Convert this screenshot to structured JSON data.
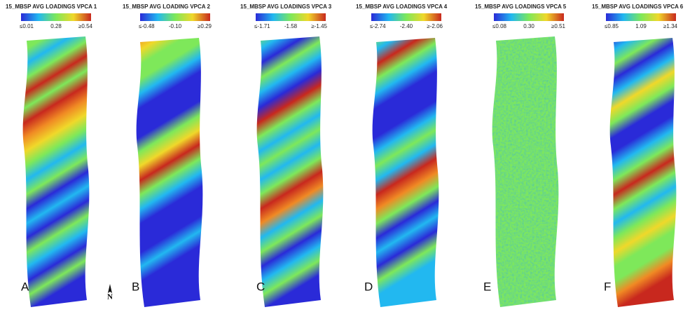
{
  "panels": [
    {
      "title": "15_MBSP AVG LOADINGS VPCA 1",
      "scale": {
        "min": "≤0.01",
        "mid": "0.28",
        "max": "≥0.54"
      },
      "label": "A"
    },
    {
      "title": "15_MBSP AVG LOADING VPCA 2",
      "scale": {
        "min": "≤-0.48",
        "mid": "-0.10",
        "max": "≥0.29"
      },
      "label": "B"
    },
    {
      "title": "15_MBSP AVG LOADINGS VPCA 3",
      "scale": {
        "min": "≤-1.71",
        "mid": "-1.58",
        "max": "≥-1.45"
      },
      "label": "C"
    },
    {
      "title": "15_MBSP AVG LOADINGS VPCA 4",
      "scale": {
        "min": "≤-2.74",
        "mid": "-2.40",
        "max": "≥-2.06"
      },
      "label": "D"
    },
    {
      "title": "15_MBSP AVG LOADINGS VPCA 5",
      "scale": {
        "min": "≤0.08",
        "mid": "0.30",
        "max": "≥0.51"
      },
      "label": "E"
    },
    {
      "title": "15_MBSP AVG LOADINGS VPCA 6",
      "scale": {
        "min": "≤0.85",
        "mid": "1.09",
        "max": "≥1.34"
      },
      "label": "F"
    }
  ],
  "north_arrow": "N"
}
